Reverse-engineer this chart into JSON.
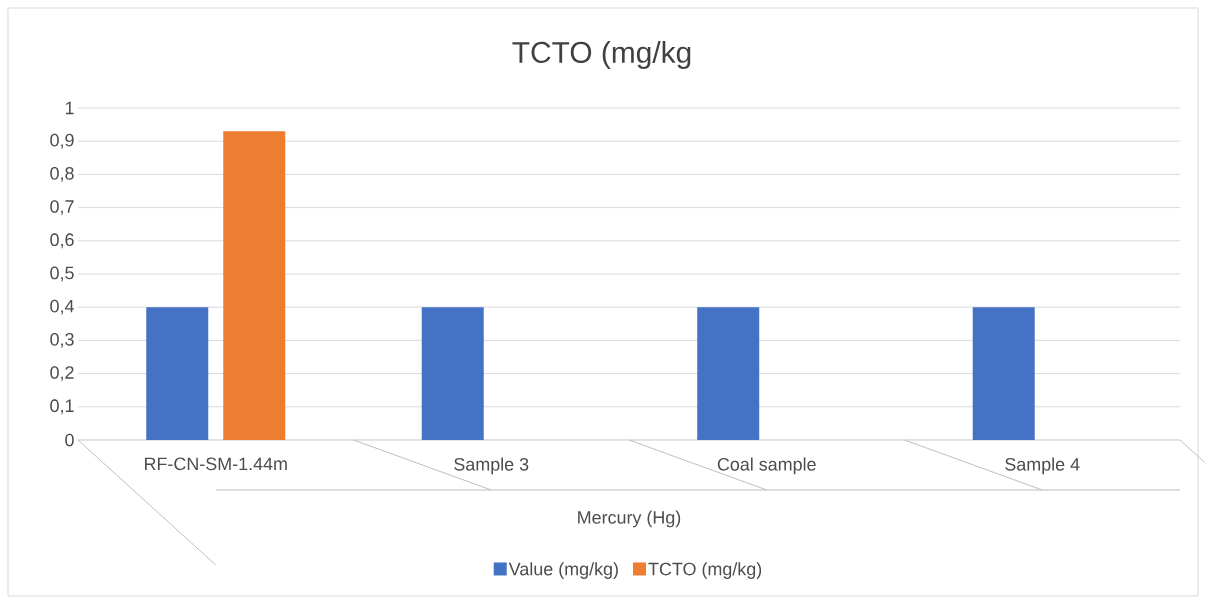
{
  "chart_data": {
    "type": "bar",
    "title": "TCTO (mg/kg",
    "xlabel": "Mercury (Hg)",
    "categories": [
      "RF-CN-SM-1.44m",
      "Sample 3",
      "Coal sample",
      "Sample 4"
    ],
    "series": [
      {
        "name": "Value (mg/kg)",
        "color": "#4472c4",
        "values": [
          0.4,
          0.4,
          0.4,
          0.4
        ]
      },
      {
        "name": "TCTO (mg/kg)",
        "color": "#ed7d31",
        "values": [
          0.93,
          null,
          null,
          null
        ]
      }
    ],
    "ylim": [
      0,
      1
    ],
    "yticks": [
      0,
      {
        "value": 0.1,
        "label": "0,1"
      },
      {
        "value": 0.2,
        "label": "0,2"
      },
      {
        "value": 0.3,
        "label": "0,3"
      },
      {
        "value": 0.4,
        "label": "0,4"
      },
      {
        "value": 0.5,
        "label": "0,5"
      },
      {
        "value": 0.6,
        "label": "0,6"
      },
      {
        "value": 0.7,
        "label": "0,7"
      },
      {
        "value": 0.8,
        "label": "0,8"
      },
      {
        "value": 0.9,
        "label": "0,9"
      },
      1
    ],
    "grid": "y",
    "legend": "bottom"
  }
}
